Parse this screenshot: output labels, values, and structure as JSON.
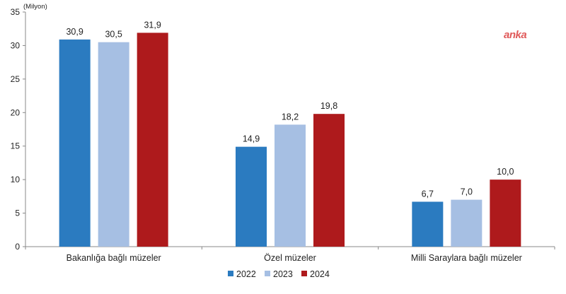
{
  "chart_data": {
    "type": "bar",
    "unit_label": "(Milyon)",
    "categories": [
      "Bakanlığa bağlı müzeler",
      "Özel müzeler",
      "Milli Saraylara bağlı müzeler"
    ],
    "series": [
      {
        "name": "2022",
        "values": [
          30.9,
          14.9,
          6.7
        ],
        "labels": [
          "30,9",
          "14,9",
          "6,7"
        ],
        "color": "#2b7bc0"
      },
      {
        "name": "2023",
        "values": [
          30.5,
          18.2,
          7.0
        ],
        "labels": [
          "30,5",
          "18,2",
          "7,0"
        ],
        "color": "#a6bfe3"
      },
      {
        "name": "2024",
        "values": [
          31.9,
          19.8,
          10.0
        ],
        "labels": [
          "31,9",
          "19,8",
          "10,0"
        ],
        "color": "#ae1a1c"
      }
    ],
    "ylim": [
      0,
      35
    ],
    "yticks": [
      0,
      5,
      10,
      15,
      20,
      25,
      30,
      35
    ],
    "grid": false,
    "legend_position": "bottom-center"
  },
  "watermark": "anka"
}
